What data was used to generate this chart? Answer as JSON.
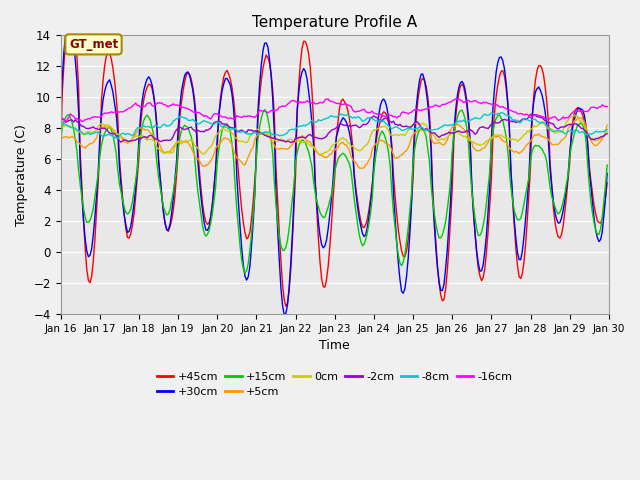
{
  "title": "Temperature Profile A",
  "xlabel": "Time",
  "ylabel": "Temperature (C)",
  "ylim": [
    -4,
    14
  ],
  "xlim": [
    0,
    14
  ],
  "yticks": [
    -4,
    -2,
    0,
    2,
    4,
    6,
    8,
    10,
    12,
    14
  ],
  "xtick_labels": [
    "Jan 16",
    "Jan 17",
    "Jan 18",
    "Jan 19",
    "Jan 20",
    "Jan 21",
    "Jan 22",
    "Jan 23",
    "Jan 24",
    "Jan 25",
    "Jan 26",
    "Jan 27",
    "Jan 28",
    "Jan 29",
    "Jan 30"
  ],
  "series": [
    {
      "label": "+45cm",
      "color": "#ff0000",
      "base": 5.5,
      "amp": 6.0,
      "seed": 1
    },
    {
      "label": "+30cm",
      "color": "#0000ff",
      "base": 5.5,
      "amp": 6.0,
      "seed": 2
    },
    {
      "label": "+15cm",
      "color": "#00cc00",
      "base": 5.0,
      "amp": 4.5,
      "seed": 3
    },
    {
      "label": "+5cm",
      "color": "#ff9900",
      "base": 6.5,
      "amp": 1.8,
      "seed": 4
    },
    {
      "label": "0cm",
      "color": "#cccc00",
      "base": 6.8,
      "amp": 1.4,
      "seed": 5
    },
    {
      "label": "-2cm",
      "color": "#9900cc",
      "base": 7.1,
      "amp": 0.9,
      "seed": 6
    },
    {
      "label": "-8cm",
      "color": "#00cccc",
      "base": 7.3,
      "amp": 0.6,
      "seed": 7
    },
    {
      "label": "-16cm",
      "color": "#ff00ff",
      "base": 8.0,
      "amp": 0.4,
      "seed": 8
    }
  ],
  "annotation_text": "GT_met",
  "annotation_bg": "#ffffcc",
  "annotation_border": "#aa8800",
  "plot_bg": "#e8e8e8",
  "fig_bg": "#f0f0f0",
  "figsize": [
    6.4,
    4.8
  ],
  "dpi": 100
}
